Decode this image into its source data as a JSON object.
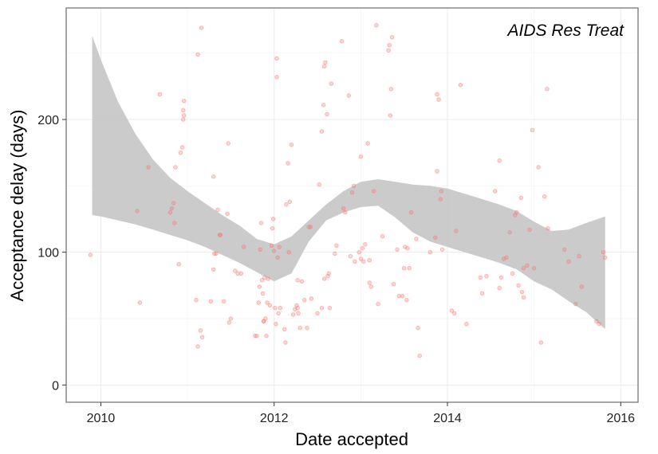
{
  "chart_data": {
    "type": "scatter",
    "title": "",
    "panel_label": "AIDS Res Treat",
    "xlabel": "Date accepted",
    "ylabel": "Acceptance delay (days)",
    "xlim": [
      2009.6,
      2016.2
    ],
    "ylim": [
      -13,
      284
    ],
    "x_ticks": [
      2010,
      2012,
      2014,
      2016
    ],
    "y_ticks": [
      0,
      100,
      200
    ],
    "x_tick_labels": [
      "2010",
      "2012",
      "2014",
      "2016"
    ],
    "y_tick_labels": [
      "0",
      "100",
      "200"
    ],
    "grid": true,
    "legend": "none",
    "colors": {
      "points": "#f8766d",
      "band": "#c8c8c8",
      "panel_border": "#808080",
      "grid": "#ebebeb"
    },
    "points": [
      [
        2009.88,
        98
      ],
      [
        2010.45,
        62
      ],
      [
        2010.42,
        131
      ],
      [
        2010.55,
        164
      ],
      [
        2010.68,
        219
      ],
      [
        2010.8,
        130
      ],
      [
        2010.82,
        133
      ],
      [
        2010.84,
        137
      ],
      [
        2010.85,
        122
      ],
      [
        2010.86,
        164
      ],
      [
        2010.9,
        91
      ],
      [
        2010.92,
        175
      ],
      [
        2010.94,
        179
      ],
      [
        2010.95,
        200
      ],
      [
        2010.95,
        207
      ],
      [
        2010.96,
        214
      ],
      [
        2010.96,
        203
      ],
      [
        2011.1,
        64
      ],
      [
        2011.12,
        29
      ],
      [
        2011.12,
        249
      ],
      [
        2011.15,
        41
      ],
      [
        2011.16,
        269
      ],
      [
        2011.17,
        36
      ],
      [
        2011.27,
        63
      ],
      [
        2011.3,
        87
      ],
      [
        2011.3,
        157
      ],
      [
        2011.31,
        99
      ],
      [
        2011.33,
        99
      ],
      [
        2011.35,
        132
      ],
      [
        2011.37,
        113
      ],
      [
        2011.38,
        113
      ],
      [
        2011.42,
        63
      ],
      [
        2011.46,
        129
      ],
      [
        2011.47,
        182
      ],
      [
        2011.48,
        47
      ],
      [
        2011.5,
        50
      ],
      [
        2011.55,
        86
      ],
      [
        2011.58,
        84
      ],
      [
        2011.62,
        84
      ],
      [
        2011.65,
        104
      ],
      [
        2011.78,
        37
      ],
      [
        2011.8,
        37
      ],
      [
        2011.82,
        62
      ],
      [
        2011.83,
        74
      ],
      [
        2011.84,
        102
      ],
      [
        2011.85,
        122
      ],
      [
        2011.86,
        79
      ],
      [
        2011.87,
        69
      ],
      [
        2011.88,
        48
      ],
      [
        2011.88,
        48
      ],
      [
        2011.89,
        81
      ],
      [
        2011.9,
        50
      ],
      [
        2011.91,
        37
      ],
      [
        2011.92,
        62
      ],
      [
        2011.93,
        80
      ],
      [
        2011.95,
        60
      ],
      [
        2011.97,
        105
      ],
      [
        2011.98,
        118
      ],
      [
        2011.99,
        125
      ],
      [
        2012.0,
        101
      ],
      [
        2012.01,
        58
      ],
      [
        2012.02,
        46
      ],
      [
        2012.03,
        232
      ],
      [
        2012.03,
        246
      ],
      [
        2012.04,
        96
      ],
      [
        2012.05,
        54
      ],
      [
        2012.06,
        104
      ],
      [
        2012.07,
        58
      ],
      [
        2012.12,
        42
      ],
      [
        2012.13,
        32
      ],
      [
        2012.14,
        136
      ],
      [
        2012.16,
        167
      ],
      [
        2012.17,
        100
      ],
      [
        2012.18,
        138
      ],
      [
        2012.2,
        181
      ],
      [
        2012.22,
        53
      ],
      [
        2012.24,
        57
      ],
      [
        2012.26,
        60
      ],
      [
        2012.27,
        79
      ],
      [
        2012.27,
        58
      ],
      [
        2012.28,
        54
      ],
      [
        2012.3,
        43
      ],
      [
        2012.32,
        78
      ],
      [
        2012.35,
        64
      ],
      [
        2012.38,
        43
      ],
      [
        2012.4,
        119
      ],
      [
        2012.42,
        119
      ],
      [
        2012.43,
        65
      ],
      [
        2012.5,
        54
      ],
      [
        2012.52,
        151
      ],
      [
        2012.55,
        58
      ],
      [
        2012.55,
        191
      ],
      [
        2012.57,
        211
      ],
      [
        2012.58,
        80
      ],
      [
        2012.58,
        240
      ],
      [
        2012.59,
        243
      ],
      [
        2012.61,
        204
      ],
      [
        2012.62,
        82
      ],
      [
        2012.63,
        84
      ],
      [
        2012.64,
        58
      ],
      [
        2012.66,
        227
      ],
      [
        2012.7,
        99
      ],
      [
        2012.72,
        105
      ],
      [
        2012.78,
        259
      ],
      [
        2012.8,
        133
      ],
      [
        2012.82,
        130
      ],
      [
        2012.86,
        218
      ],
      [
        2012.88,
        97
      ],
      [
        2012.9,
        145
      ],
      [
        2012.92,
        150
      ],
      [
        2012.93,
        93
      ],
      [
        2012.98,
        100
      ],
      [
        2013.0,
        95
      ],
      [
        2013.0,
        172
      ],
      [
        2013.02,
        103
      ],
      [
        2013.03,
        93
      ],
      [
        2013.05,
        106
      ],
      [
        2013.08,
        182
      ],
      [
        2013.1,
        94
      ],
      [
        2013.1,
        77
      ],
      [
        2013.12,
        74
      ],
      [
        2013.15,
        146
      ],
      [
        2013.18,
        271
      ],
      [
        2013.2,
        61
      ],
      [
        2013.25,
        112
      ],
      [
        2013.32,
        252
      ],
      [
        2013.33,
        256
      ],
      [
        2013.34,
        203
      ],
      [
        2013.35,
        223
      ],
      [
        2013.36,
        262
      ],
      [
        2013.38,
        76
      ],
      [
        2013.42,
        102
      ],
      [
        2013.44,
        67
      ],
      [
        2013.48,
        67
      ],
      [
        2013.5,
        88
      ],
      [
        2013.51,
        104
      ],
      [
        2013.53,
        64
      ],
      [
        2013.54,
        103
      ],
      [
        2013.56,
        88
      ],
      [
        2013.58,
        130
      ],
      [
        2013.64,
        110
      ],
      [
        2013.66,
        43
      ],
      [
        2013.68,
        22
      ],
      [
        2013.8,
        100
      ],
      [
        2013.86,
        111
      ],
      [
        2013.88,
        161
      ],
      [
        2013.88,
        219
      ],
      [
        2013.9,
        215
      ],
      [
        2013.92,
        140
      ],
      [
        2013.93,
        146
      ],
      [
        2013.94,
        102
      ],
      [
        2014.05,
        56
      ],
      [
        2014.08,
        54
      ],
      [
        2014.1,
        116
      ],
      [
        2014.15,
        226
      ],
      [
        2014.22,
        46
      ],
      [
        2014.38,
        81
      ],
      [
        2014.4,
        69
      ],
      [
        2014.45,
        82
      ],
      [
        2014.55,
        146
      ],
      [
        2014.6,
        169
      ],
      [
        2014.6,
        73
      ],
      [
        2014.62,
        81
      ],
      [
        2014.65,
        95
      ],
      [
        2014.68,
        96
      ],
      [
        2014.72,
        115
      ],
      [
        2014.75,
        84
      ],
      [
        2014.78,
        128
      ],
      [
        2014.8,
        130
      ],
      [
        2014.82,
        75
      ],
      [
        2014.85,
        141
      ],
      [
        2014.86,
        70
      ],
      [
        2014.88,
        88
      ],
      [
        2014.88,
        66
      ],
      [
        2014.92,
        90
      ],
      [
        2014.95,
        117
      ],
      [
        2014.98,
        192
      ],
      [
        2015.0,
        88
      ],
      [
        2015.05,
        164
      ],
      [
        2015.08,
        32
      ],
      [
        2015.12,
        142
      ],
      [
        2015.15,
        223
      ],
      [
        2015.16,
        118
      ],
      [
        2015.35,
        102
      ],
      [
        2015.4,
        93
      ],
      [
        2015.48,
        61
      ],
      [
        2015.52,
        97
      ],
      [
        2015.55,
        74
      ],
      [
        2015.72,
        48
      ],
      [
        2015.75,
        46
      ],
      [
        2015.8,
        100
      ],
      [
        2015.82,
        96
      ]
    ],
    "smooth": {
      "x": [
        2009.9,
        2010.0,
        2010.2,
        2010.4,
        2010.6,
        2010.8,
        2011.0,
        2011.2,
        2011.4,
        2011.6,
        2011.8,
        2012.0,
        2012.2,
        2012.4,
        2012.6,
        2012.8,
        2013.0,
        2013.2,
        2013.4,
        2013.6,
        2013.8,
        2014.0,
        2014.2,
        2014.4,
        2014.6,
        2014.8,
        2015.0,
        2015.2,
        2015.4,
        2015.6,
        2015.82
      ],
      "upper": [
        263,
        245,
        213,
        189,
        170,
        156,
        146,
        137,
        128,
        120,
        110,
        106,
        112,
        124,
        136,
        146,
        153,
        155,
        153,
        151,
        150,
        148,
        144,
        140,
        136,
        131,
        123,
        116,
        117,
        122,
        127
      ],
      "lower": [
        128,
        127,
        124,
        121,
        117,
        113,
        109,
        104,
        98,
        92,
        85,
        78,
        84,
        108,
        124,
        130,
        134,
        135,
        126,
        115,
        108,
        104,
        100,
        96,
        92,
        87,
        78,
        72,
        63,
        55,
        42
      ]
    }
  }
}
